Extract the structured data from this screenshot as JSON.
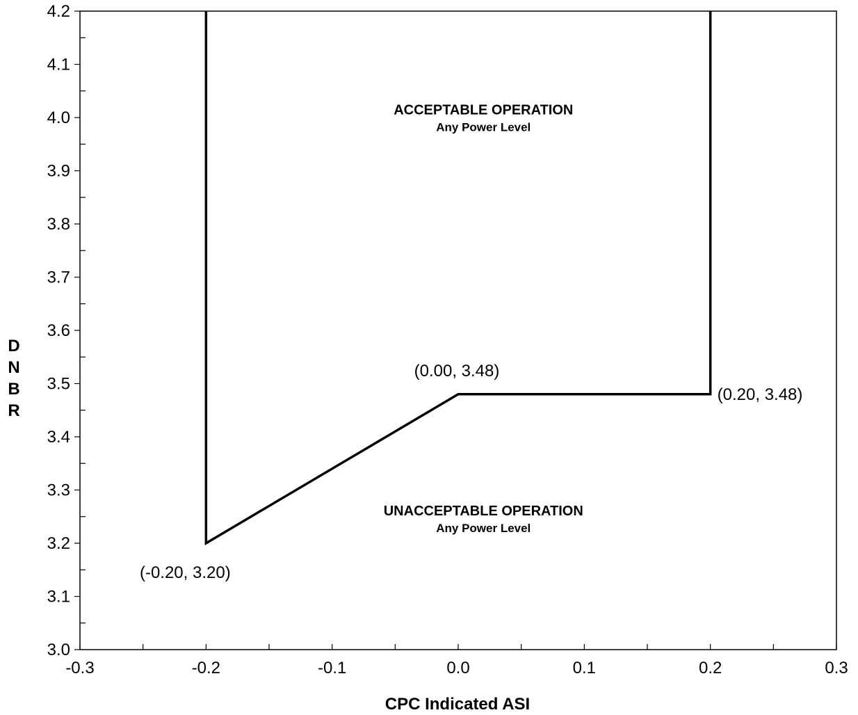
{
  "chart_data": {
    "type": "line",
    "xlabel": "CPC Indicated ASI",
    "ylabel": "DNBR",
    "xlim": [
      -0.3,
      0.3
    ],
    "ylim": [
      3.0,
      4.2
    ],
    "x_ticks": [
      -0.3,
      -0.2,
      -0.1,
      0.0,
      0.1,
      0.2,
      0.3
    ],
    "x_tick_labels": [
      "-0.3",
      "-0.2",
      "-0.1",
      "0.0",
      "0.1",
      "0.2",
      "0.3"
    ],
    "y_ticks": [
      3.0,
      3.1,
      3.2,
      3.3,
      3.4,
      3.5,
      3.6,
      3.7,
      3.8,
      3.9,
      4.0,
      4.1,
      4.2
    ],
    "y_tick_labels": [
      "3.0",
      "3.1",
      "3.2",
      "3.3",
      "3.4",
      "3.5",
      "3.6",
      "3.7",
      "3.8",
      "3.9",
      "4.0",
      "4.1",
      "4.2"
    ],
    "grid": false,
    "series": [
      {
        "x": [
          -0.2,
          -0.2,
          0.0,
          0.2,
          0.2
        ],
        "y": [
          4.2,
          3.2,
          3.48,
          3.48,
          4.2
        ]
      }
    ],
    "point_labels": [
      {
        "x": -0.2,
        "y": 3.2,
        "text": "(-0.20, 3.20)"
      },
      {
        "x": 0.0,
        "y": 3.48,
        "text": "(0.00, 3.48)"
      },
      {
        "x": 0.2,
        "y": 3.48,
        "text": "(0.20, 3.48)"
      }
    ],
    "annotations": [
      {
        "x": 0.02,
        "y": 4.006,
        "title": "ACCEPTABLE OPERATION",
        "subtitle": "Any Power Level"
      },
      {
        "x": 0.02,
        "y": 3.252,
        "title": "UNACCEPTABLE OPERATION",
        "subtitle": "Any Power Level"
      }
    ]
  }
}
